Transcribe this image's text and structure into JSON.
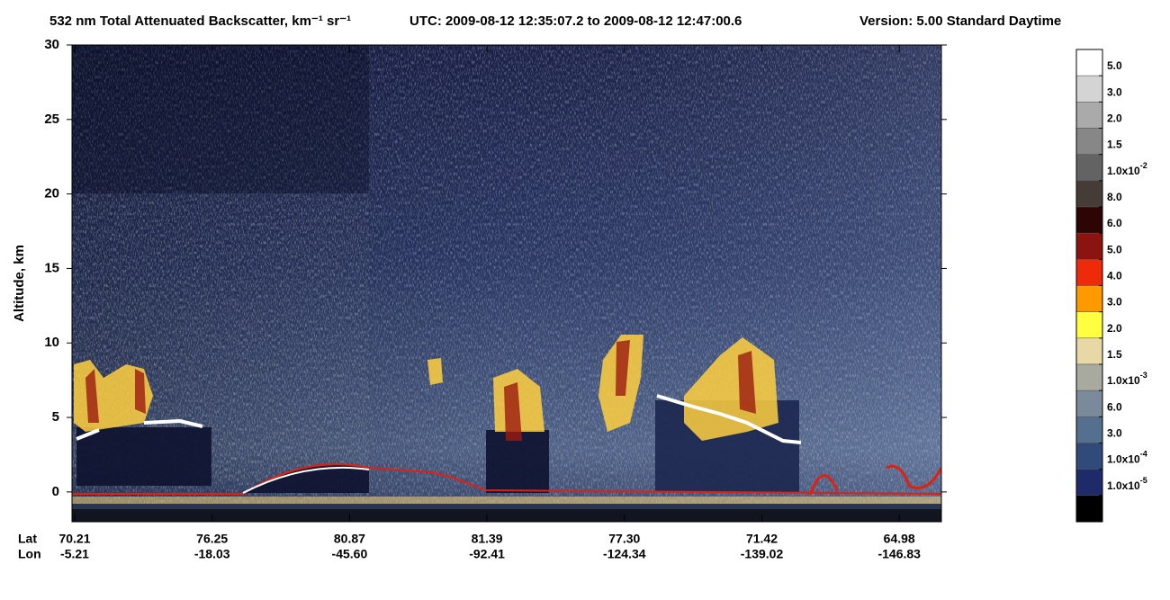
{
  "chart_data": {
    "type": "heatmap",
    "title": "532 nm Total Attenuated Backscatter, km⁻¹ sr⁻¹",
    "subtitle": "UTC:  2009-08-12 12:35:07.2  to  2009-08-12 12:47:00.6",
    "version": "Version: 5.00  Standard  Daytime",
    "ylabel": "Altitude, km",
    "ylim": [
      -2,
      30
    ],
    "yticks": [
      0,
      5,
      10,
      15,
      20,
      25,
      30
    ],
    "x_rows": [
      {
        "name": "Lat",
        "labels": [
          "70.21",
          "76.25",
          "80.87",
          "81.39",
          "77.30",
          "71.42",
          "64.98"
        ]
      },
      {
        "name": "Lon",
        "labels": [
          "-5.21",
          "-18.03",
          "-45.60",
          "-92.41",
          "-124.34",
          "-139.02",
          "-146.83"
        ]
      }
    ],
    "colorbar": {
      "colors": [
        "#ffffff",
        "#d4d4d4",
        "#aaaaaa",
        "#878787",
        "#636363",
        "#453c38",
        "#2e0505",
        "#8b1410",
        "#ee2a0a",
        "#ff9900",
        "#ffff40",
        "#e8d8a8",
        "#a8aaa0",
        "#7a8a9a",
        "#55708f",
        "#304a7a",
        "#1f2a6a",
        "#000000"
      ],
      "levels": [
        {
          "label": "5.0"
        },
        {
          "label": "3.0"
        },
        {
          "label": "2.0"
        },
        {
          "label": "1.5"
        },
        {
          "label": "1.0x10",
          "exponent": "-2"
        },
        {
          "label": "8.0"
        },
        {
          "label": "6.0"
        },
        {
          "label": "5.0"
        },
        {
          "label": "4.0"
        },
        {
          "label": "3.0"
        },
        {
          "label": "2.0"
        },
        {
          "label": "1.5"
        },
        {
          "label": "1.0x10",
          "exponent": "-3"
        },
        {
          "label": "6.0"
        },
        {
          "label": "3.0"
        },
        {
          "label": "1.0x10",
          "exponent": "-4"
        },
        {
          "label": "1.0x10",
          "exponent": "-5"
        }
      ]
    }
  }
}
